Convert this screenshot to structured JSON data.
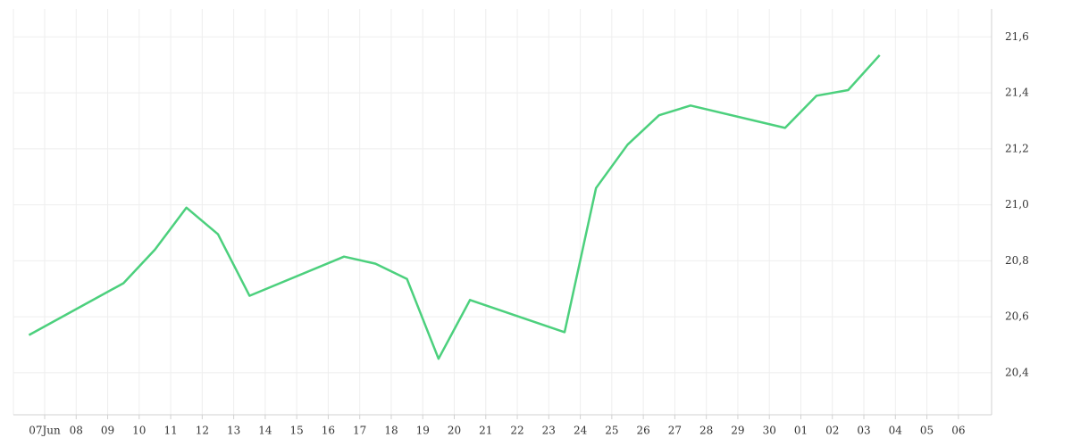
{
  "chart_data": {
    "type": "line",
    "categories": [
      "07Jun",
      "08",
      "09",
      "10",
      "11",
      "12",
      "13",
      "14",
      "15",
      "16",
      "17",
      "18",
      "19",
      "20",
      "21",
      "22",
      "23",
      "24",
      "25",
      "26",
      "27",
      "28",
      "29",
      "30",
      "01",
      "02",
      "03",
      "04",
      "05",
      "06"
    ],
    "series": [
      {
        "color": "#4cd07d",
        "x": [
          "07Jun",
          "10",
          "11",
          "12",
          "13",
          "14",
          "17",
          "18",
          "19",
          "20",
          "21",
          "24",
          "25",
          "26",
          "27",
          "28",
          "01",
          "02",
          "03",
          "04"
        ],
        "values": [
          20.535,
          20.72,
          20.84,
          20.99,
          20.895,
          20.675,
          20.815,
          20.79,
          20.735,
          20.45,
          20.66,
          20.545,
          21.06,
          21.215,
          21.32,
          21.355,
          21.275,
          21.39,
          21.41,
          21.535
        ]
      }
    ],
    "ylim": [
      20.25,
      21.7
    ],
    "yticks": [
      {
        "value": 20.4,
        "label": "20,4"
      },
      {
        "value": 20.6,
        "label": "20,6"
      },
      {
        "value": 20.8,
        "label": "20,8"
      },
      {
        "value": 21.0,
        "label": "21,0"
      },
      {
        "value": 21.2,
        "label": "21,2"
      },
      {
        "value": 21.4,
        "label": "21,4"
      },
      {
        "value": 21.6,
        "label": "21,6"
      }
    ],
    "grid": true
  }
}
